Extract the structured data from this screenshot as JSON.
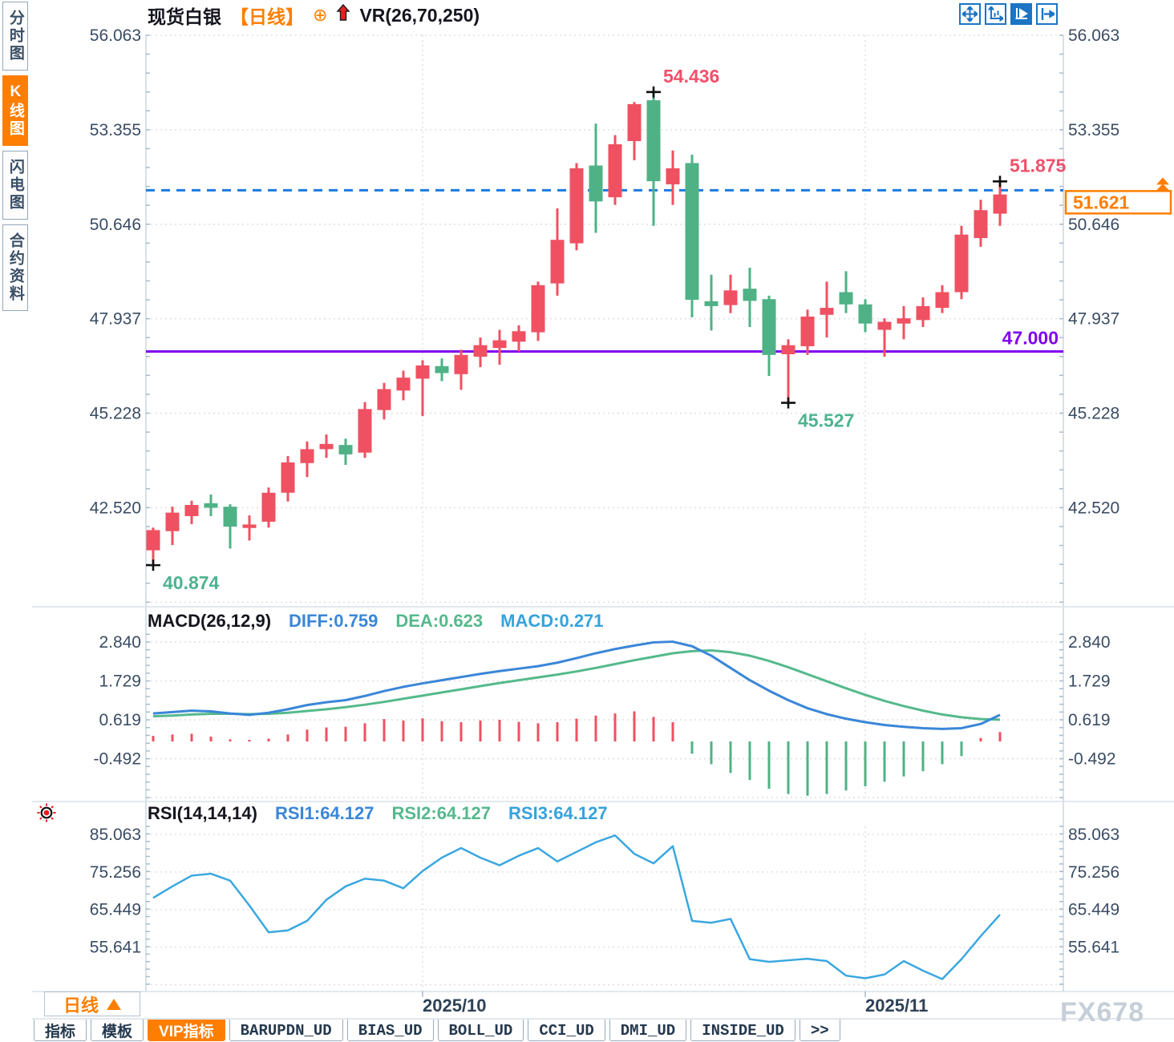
{
  "header": {
    "symbol": "现货白银",
    "period": "【日线】",
    "plus_icon": "⊕",
    "indicator": "VR(26,70,250)"
  },
  "toolbar": {
    "icons": [
      "pan-icon",
      "axis-zoom-icon",
      "axis-play-icon",
      "collapse-right-icon"
    ]
  },
  "sidebar": {
    "tabs": [
      {
        "label": "分时图",
        "active": false
      },
      {
        "label": "K线图",
        "active": true
      },
      {
        "label": "闪电图",
        "active": false
      },
      {
        "label": "合约资料",
        "active": false
      }
    ]
  },
  "period_selector": {
    "label": "日线",
    "arrow": "up-triangle-icon"
  },
  "watermark": {
    "text": "FX678"
  },
  "bottom_tabs": {
    "items": [
      {
        "label": "指标",
        "active": false,
        "cn": true
      },
      {
        "label": "模板",
        "active": false,
        "cn": true
      },
      {
        "label": "VIP指标",
        "active": true,
        "cn": true
      },
      {
        "label": "BARUPDN_UD",
        "active": false,
        "cn": false
      },
      {
        "label": "BIAS_UD",
        "active": false,
        "cn": false
      },
      {
        "label": "BOLL_UD",
        "active": false,
        "cn": false
      },
      {
        "label": "CCI_UD",
        "active": false,
        "cn": false
      },
      {
        "label": "DMI_UD",
        "active": false,
        "cn": false
      },
      {
        "label": "INSIDE_UD",
        "active": false,
        "cn": false
      },
      {
        "label": ">>",
        "active": false,
        "cn": false
      }
    ]
  },
  "chart_data": {
    "type": "candlestick",
    "colors": {
      "up_red": "#ef5162",
      "down_green": "#4fb286",
      "diff_blue": "#3a86d8",
      "dea_green": "#55b98c",
      "rsi_blue": "#3aa7e0",
      "support_purple": "#8000f0",
      "dashed_blue": "#1c7be0",
      "accent_orange": "#ff7e00",
      "axis_text": "#3a4c63",
      "grid": "#e1e1e1",
      "panel_border": "#d8e0e8",
      "navy": "#2e4156",
      "anno_red": "#f0506b",
      "anno_green": "#4db38e"
    },
    "x_axis": {
      "labels": [
        {
          "text": "2025/10",
          "candle_index": 15
        },
        {
          "text": "2025/11",
          "candle_index": 38
        }
      ]
    },
    "panels": {
      "price": {
        "y_ticks": [
          "56.063",
          "53.355",
          "50.646",
          "47.937",
          "45.228",
          "42.520"
        ],
        "support_line": {
          "text": "47.000",
          "value": 47.0
        },
        "current_price": {
          "text": "51.621",
          "value": 51.621
        },
        "annotations": [
          {
            "name": "low",
            "text": "40.874",
            "value": 40.874,
            "candle_index": 1,
            "color": "green",
            "side": "below"
          },
          {
            "name": "high",
            "text": "54.436",
            "value": 54.436,
            "candle_index": 27,
            "color": "red",
            "side": "above"
          },
          {
            "name": "dip",
            "text": "45.527",
            "value": 45.527,
            "candle_index": 34,
            "color": "green",
            "side": "below"
          },
          {
            "name": "last-high",
            "text": "51.875",
            "value": 51.875,
            "candle_index": 45,
            "color": "red",
            "side": "above"
          }
        ],
        "candles_ohlc": [
          [
            41.3,
            41.95,
            40.874,
            41.88
          ],
          [
            41.85,
            42.55,
            41.45,
            42.38
          ],
          [
            42.28,
            42.72,
            42.05,
            42.6
          ],
          [
            42.65,
            42.9,
            42.28,
            42.52
          ],
          [
            42.55,
            42.62,
            41.35,
            41.98
          ],
          [
            41.94,
            42.3,
            41.58,
            42.04
          ],
          [
            42.12,
            43.1,
            41.95,
            42.95
          ],
          [
            42.95,
            44.0,
            42.7,
            43.82
          ],
          [
            43.8,
            44.42,
            43.4,
            44.2
          ],
          [
            44.2,
            44.62,
            43.95,
            44.35
          ],
          [
            44.32,
            44.5,
            43.75,
            44.05
          ],
          [
            44.1,
            45.55,
            43.95,
            45.35
          ],
          [
            45.32,
            46.1,
            45.05,
            45.92
          ],
          [
            45.88,
            46.45,
            45.6,
            46.25
          ],
          [
            46.22,
            46.75,
            45.15,
            46.6
          ],
          [
            46.58,
            46.8,
            46.15,
            46.38
          ],
          [
            46.35,
            47.05,
            45.9,
            46.9
          ],
          [
            46.85,
            47.4,
            46.55,
            47.18
          ],
          [
            47.1,
            47.62,
            46.62,
            47.32
          ],
          [
            47.28,
            47.75,
            47.0,
            47.58
          ],
          [
            47.55,
            49.0,
            47.3,
            48.9
          ],
          [
            48.95,
            51.1,
            48.6,
            50.2
          ],
          [
            50.1,
            52.4,
            49.9,
            52.25
          ],
          [
            52.33,
            53.53,
            50.4,
            51.3
          ],
          [
            51.42,
            53.2,
            51.2,
            52.94
          ],
          [
            53.03,
            54.15,
            52.48,
            54.09
          ],
          [
            54.2,
            54.436,
            50.6,
            51.88
          ],
          [
            51.79,
            52.76,
            51.2,
            52.25
          ],
          [
            52.4,
            52.64,
            47.98,
            48.48
          ],
          [
            48.44,
            49.2,
            47.6,
            48.3
          ],
          [
            48.33,
            49.2,
            48.1,
            48.75
          ],
          [
            48.8,
            49.4,
            47.7,
            48.45
          ],
          [
            48.5,
            48.6,
            46.3,
            46.9
          ],
          [
            46.92,
            47.35,
            45.527,
            47.18
          ],
          [
            47.15,
            48.2,
            46.9,
            48.0
          ],
          [
            48.05,
            49.0,
            47.4,
            48.25
          ],
          [
            48.7,
            49.3,
            48.1,
            48.35
          ],
          [
            48.35,
            48.5,
            47.55,
            47.8
          ],
          [
            47.62,
            47.95,
            46.85,
            47.85
          ],
          [
            47.8,
            48.3,
            47.35,
            47.95
          ],
          [
            47.9,
            48.55,
            47.7,
            48.3
          ],
          [
            48.25,
            48.9,
            48.1,
            48.7
          ],
          [
            48.7,
            50.6,
            48.5,
            50.35
          ],
          [
            50.25,
            51.35,
            50.0,
            51.05
          ],
          [
            50.95,
            51.875,
            50.6,
            51.5
          ]
        ]
      },
      "macd": {
        "title": "MACD(26,12,9)",
        "diff_label": "DIFF:0.759",
        "dea_label": "DEA:0.623",
        "macd_label": "MACD:0.271",
        "y_ticks": [
          "2.840",
          "1.729",
          "0.619",
          "-0.492"
        ],
        "diff": [
          0.8,
          0.84,
          0.88,
          0.86,
          0.8,
          0.76,
          0.82,
          0.92,
          1.04,
          1.12,
          1.18,
          1.3,
          1.44,
          1.56,
          1.66,
          1.75,
          1.84,
          1.93,
          2.01,
          2.08,
          2.15,
          2.25,
          2.38,
          2.52,
          2.64,
          2.74,
          2.83,
          2.85,
          2.72,
          2.45,
          2.1,
          1.75,
          1.45,
          1.18,
          0.95,
          0.78,
          0.65,
          0.55,
          0.47,
          0.42,
          0.38,
          0.36,
          0.38,
          0.5,
          0.759
        ],
        "dea": [
          0.72,
          0.74,
          0.77,
          0.79,
          0.79,
          0.78,
          0.79,
          0.82,
          0.87,
          0.92,
          0.98,
          1.05,
          1.13,
          1.22,
          1.31,
          1.4,
          1.49,
          1.58,
          1.67,
          1.75,
          1.83,
          1.91,
          2.0,
          2.1,
          2.21,
          2.32,
          2.42,
          2.52,
          2.58,
          2.6,
          2.55,
          2.45,
          2.3,
          2.12,
          1.92,
          1.72,
          1.52,
          1.33,
          1.16,
          1.01,
          0.88,
          0.77,
          0.69,
          0.64,
          0.623
        ],
        "hist": [
          0.16,
          0.2,
          0.22,
          0.14,
          0.06,
          0.05,
          0.08,
          0.2,
          0.34,
          0.4,
          0.42,
          0.52,
          0.64,
          0.6,
          0.66,
          0.58,
          0.55,
          0.6,
          0.62,
          0.56,
          0.52,
          0.55,
          0.65,
          0.74,
          0.8,
          0.86,
          0.7,
          0.55,
          -0.35,
          -0.65,
          -0.9,
          -1.1,
          -1.35,
          -1.5,
          -1.55,
          -1.5,
          -1.4,
          -1.28,
          -1.15,
          -1.0,
          -0.85,
          -0.65,
          -0.42,
          0.1,
          0.27
        ]
      },
      "rsi": {
        "title": "RSI(14,14,14)",
        "rsi1_label": "RSI1:64.127",
        "rsi2_label": "RSI2:64.127",
        "rsi3_label": "RSI3:64.127",
        "y_ticks": [
          "85.063",
          "75.256",
          "65.449",
          "55.641"
        ],
        "values": [
          68.5,
          71.5,
          74.3,
          74.8,
          73.0,
          66.5,
          59.5,
          60.0,
          62.5,
          68.0,
          71.5,
          73.5,
          73.0,
          71.0,
          75.5,
          79.0,
          81.5,
          79.0,
          77.0,
          79.5,
          81.5,
          78.0,
          80.5,
          83.0,
          84.8,
          80.0,
          77.5,
          82.0,
          62.5,
          62.0,
          63.0,
          52.5,
          51.8,
          52.2,
          52.6,
          52.0,
          48.2,
          47.5,
          48.5,
          52.0,
          49.5,
          47.3,
          52.5,
          58.5,
          64.127
        ]
      }
    }
  }
}
